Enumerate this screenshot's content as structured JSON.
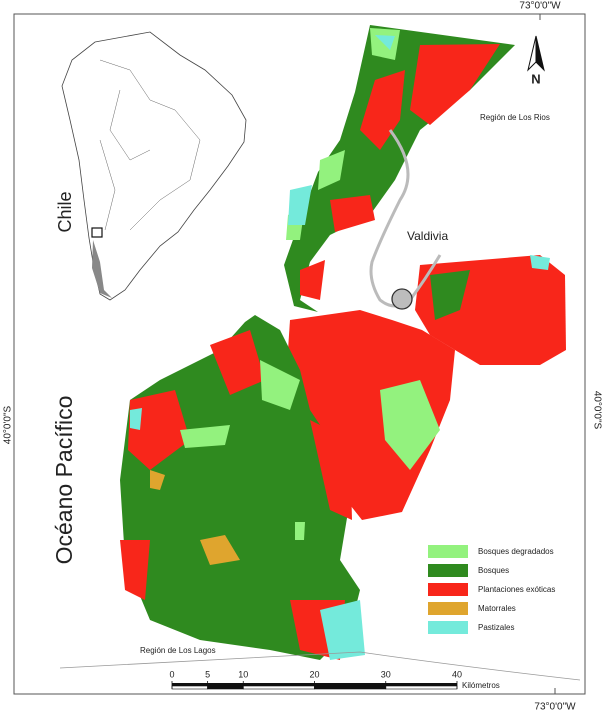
{
  "map": {
    "graticule": {
      "top": "73°0'0\"W",
      "bottom": "73°0'0\"W",
      "left": "40°0'0\"S",
      "right": "40°0'0\"S"
    },
    "labels": {
      "country": "Chile",
      "ocean": "Océano Pacífico",
      "region_north": "Región de Los Rios",
      "city": "Valdivia",
      "region_south": "Región de Los Lagos"
    },
    "north_arrow": "N",
    "legend": [
      {
        "label": "Bosques degradados",
        "color": "#93f27e"
      },
      {
        "label": "Bosques",
        "color": "#2f8a1f"
      },
      {
        "label": "Plantaciones exóticas",
        "color": "#f8261a"
      },
      {
        "label": "Matorrales",
        "color": "#dfa52e"
      },
      {
        "label": "Pastizales",
        "color": "#74eadb"
      }
    ],
    "scale_bar": {
      "ticks": [
        0,
        5,
        10,
        20,
        30,
        40
      ],
      "unit": "Kilómetros"
    }
  }
}
